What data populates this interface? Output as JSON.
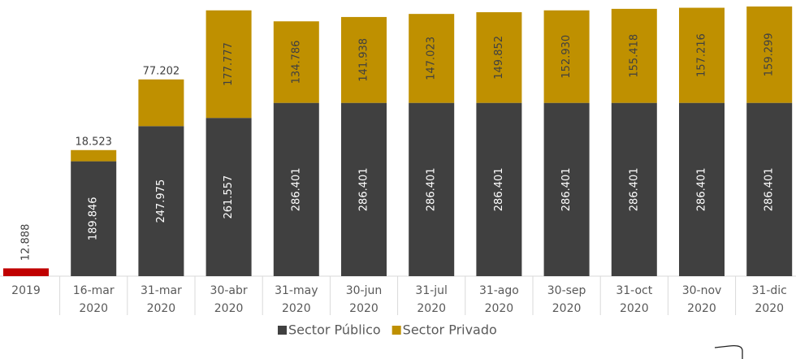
{
  "chart_data": {
    "type": "stacked_bar",
    "categories": [
      "2019",
      "16-mar 2020",
      "31-mar 2020",
      "30-abr 2020",
      "31-may 2020",
      "30-jun 2020",
      "31-jul 2020",
      "31-ago 2020",
      "30-sep 2020",
      "31-oct 2020",
      "30-nov 2020",
      "31-dic 2020"
    ],
    "series": [
      {
        "name": "Sector Público",
        "color": "#404040",
        "colors": [
          "#c00000",
          "#404040",
          "#404040",
          "#404040",
          "#404040",
          "#404040",
          "#404040",
          "#404040",
          "#404040",
          "#404040",
          "#404040",
          "#404040"
        ],
        "values": [
          12888,
          189846,
          247975,
          261557,
          286401,
          286401,
          286401,
          286401,
          286401,
          286401,
          286401,
          286401
        ],
        "value_labels": [
          "12.888",
          "189.846",
          "247.975",
          "261.557",
          "286.401",
          "286.401",
          "286.401",
          "286.401",
          "286.401",
          "286.401",
          "286.401",
          "286.401"
        ]
      },
      {
        "name": "Sector Privado",
        "color": "#bf9000",
        "values": [
          null,
          18523,
          77202,
          177777,
          134786,
          141938,
          147023,
          149852,
          152930,
          155418,
          157216,
          159299
        ],
        "value_labels": [
          null,
          "18.523",
          "77.202",
          "177.777",
          "134.786",
          "141.938",
          "147.023",
          "149.852",
          "152.930",
          "155.418",
          "157.216",
          "159.299"
        ]
      }
    ],
    "ylim": [
      0,
      450000
    ],
    "legend": "bottom"
  }
}
